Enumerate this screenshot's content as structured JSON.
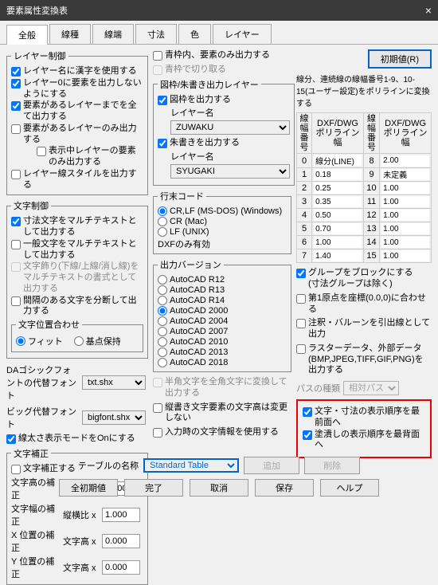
{
  "title": "要素属性変換表",
  "tabs": [
    "全般",
    "線種",
    "線端",
    "寸法",
    "色",
    "レイヤー"
  ],
  "init_btn": "初期値(R)",
  "grp_layer": "レイヤー制御",
  "l1": "レイヤー名に漢字を使用する",
  "l2": "レイヤー0に要素を出力しないようにする",
  "l3": "要素があるレイヤーまでを全て出力する",
  "l4": "要素があるレイヤーのみ出力する",
  "l5": "表示中レイヤーの要素のみ出力する",
  "l6": "レイヤー線スタイルを出力する",
  "grp_text": "文字制御",
  "t1": "寸法文字をマルチテキストとして出力する",
  "t2": "一般文字をマルチテキストとして出力する",
  "t3": "文字飾り(下線/上線/消し線)をマルチテキストの書式として出力する",
  "t4": "間隔のある文字を分断して出力する",
  "grp_align": "文字位置合わせ",
  "a1": "フィット",
  "a2": "基点保持",
  "da_lbl": "DAゴシックフォントの代替フォント",
  "da_v": "txt.shx",
  "big_lbl": "ビッグ代替フォント",
  "big_v": "bigfont.shx",
  "bold": "線太さ表示モードをOnにする",
  "grp_corr": "文字補正",
  "c0": "文字補正する",
  "c1l": "文字高の補正",
  "c1r": "文字高 x",
  "c1v": "1.000",
  "c2l": "文字幅の補正",
  "c2r": "縦横比 x",
  "c2v": "1.000",
  "c3l": "X 位置の補正",
  "c3r": "文字高 x",
  "c3v": "0.000",
  "c4l": "Y 位置の補正",
  "c4r": "文字高 x",
  "c4v": "0.000",
  "f1": "青枠内、要素のみ出力する",
  "f1s": "青枠で切り取る",
  "grp_fig": "図枠/朱書き出力レイヤー",
  "fg1": "図枠を出力する",
  "fg1l": "レイヤー名",
  "fg1v": "ZUWAKU",
  "fg2": "朱書きを出力する",
  "fg2l": "レイヤー名",
  "fg2v": "SYUGAKI",
  "grp_eol": "行末コード",
  "e1": "CR,LF (MS-DOS) (Windows)",
  "e2": "CR (Mac)",
  "e3": "LF (UNIX)",
  "e4": "DXFのみ有効",
  "grp_ver": "出力バージョン",
  "v": [
    "AutoCAD R12",
    "AutoCAD R13",
    "AutoCAD R14",
    "AutoCAD 2000",
    "AutoCAD 2004",
    "AutoCAD 2007",
    "AutoCAD 2010",
    "AutoCAD 2013",
    "AutoCAD 2018"
  ],
  "han": "半角文字を全角文字に変換して出力する",
  "tate": "縦書き文字要素の文字高は変更しない",
  "inp": "入力時の文字情報を使用する",
  "note": "線分、連続線の線幅番号1-9、10-15(ユーザー設定)をポリラインに変換する",
  "th": [
    "線幅番号",
    "DXF/DWGポリライン幅",
    "線幅番号",
    "DXF/DWGポリライン幅"
  ],
  "tr": [
    [
      "0",
      "線分(LINE)",
      "8",
      "2.00"
    ],
    [
      "1",
      "0.18",
      "9",
      "未定義"
    ],
    [
      "2",
      "0.25",
      "10",
      "1.00"
    ],
    [
      "3",
      "0.35",
      "11",
      "1.00"
    ],
    [
      "4",
      "0.50",
      "12",
      "1.00"
    ],
    [
      "5",
      "0.70",
      "13",
      "1.00"
    ],
    [
      "6",
      "1.00",
      "14",
      "1.00"
    ],
    [
      "7",
      "1.40",
      "15",
      "1.00"
    ]
  ],
  "g1": "グループをブロックにする",
  "g1s": "(寸法グループは除く)",
  "g2": "第1原点を座標(0.0,0)に合わせる",
  "g3": "注釈・バルーンを引出線として出力",
  "g4": "ラスターデータ、外部データ(BMP,JPEG,TIFF,GIF,PNG)を出力する",
  "path_l": "パスの種類",
  "path_v": "相対パス",
  "r1": "文字・寸法の表示順序を最前面へ",
  "r2": "塗潰しの表示順序を最背面へ",
  "tbl_lbl": "テーブルの名称",
  "tbl_v": "Standard Table",
  "add": "追加",
  "del": "削除",
  "b1": "全初期値",
  "b2": "完了",
  "b3": "取消",
  "b4": "保存",
  "b5": "ヘルプ"
}
